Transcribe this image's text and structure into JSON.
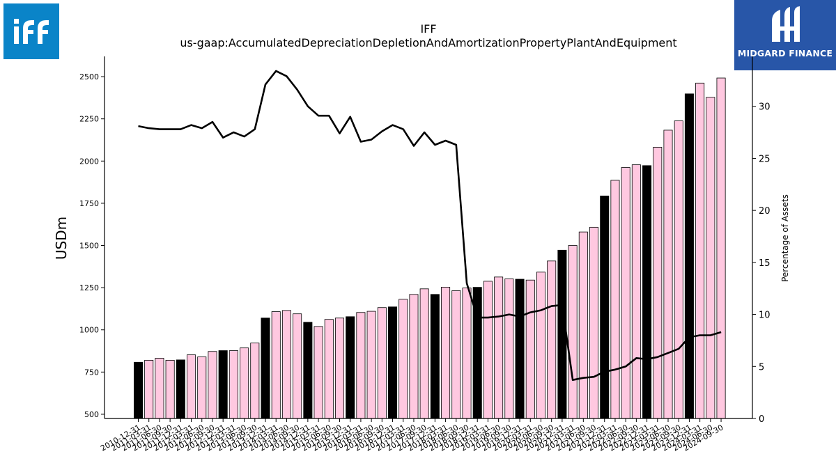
{
  "branding": {
    "left_logo_text": "iff",
    "right_logo_text": "MIDGARD FINANCE",
    "left_logo_color": "#0a84c8",
    "right_logo_color": "#2856a8"
  },
  "chart_data": {
    "type": "bar",
    "title": "IFF",
    "subtitle": "us-gaap:AccumulatedDepreciationDepletionAndAmortizationPropertyPlantAndEquipment",
    "ylabel": "USDm",
    "ylabel_right": "Percentage of Assets",
    "ylim": [
      475,
      2620
    ],
    "yticks": [
      500,
      750,
      1000,
      1250,
      1500,
      1750,
      2000,
      2250,
      2500
    ],
    "ylim_right": [
      0,
      34.8
    ],
    "yticks_right": [
      0,
      5,
      10,
      15,
      20,
      25,
      30
    ],
    "grid": false,
    "categories": [
      "2010-12-31",
      "2011-03-31",
      "2011-06-30",
      "2011-09-30",
      "2011-12-31",
      "2012-03-31",
      "2012-06-30",
      "2012-09-30",
      "2012-12-31",
      "2013-03-31",
      "2013-06-30",
      "2013-09-30",
      "2013-12-31",
      "2014-03-31",
      "2014-06-30",
      "2014-09-30",
      "2014-12-31",
      "2015-03-31",
      "2015-06-30",
      "2015-09-30",
      "2015-12-31",
      "2016-03-31",
      "2016-06-30",
      "2016-09-30",
      "2016-12-31",
      "2017-03-31",
      "2017-06-30",
      "2017-09-30",
      "2017-12-31",
      "2018-03-31",
      "2018-06-30",
      "2018-09-30",
      "2018-12-31",
      "2019-03-31",
      "2019-06-30",
      "2019-09-30",
      "2019-12-31",
      "2020-03-31",
      "2020-06-30",
      "2020-09-30",
      "2020-12-31",
      "2021-03-31",
      "2021-06-30",
      "2021-09-30",
      "2021-12-31",
      "2022-03-31",
      "2022-06-30",
      "2022-09-30",
      "2022-12-31",
      "2023-03-31",
      "2023-06-30",
      "2023-09-30",
      "2023-12-31",
      "2024-03-31",
      "2024-06-30",
      "2024-09-30"
    ],
    "series": [
      {
        "kind": "bar",
        "values": [
          808,
          820,
          832,
          820,
          822,
          852,
          840,
          872,
          877,
          877,
          893,
          922,
          1070,
          1108,
          1115,
          1095,
          1045,
          1020,
          1062,
          1070,
          1078,
          1103,
          1110,
          1132,
          1136,
          1181,
          1210,
          1243,
          1210,
          1253,
          1232,
          1248,
          1252,
          1288,
          1313,
          1302,
          1300,
          1295,
          1342,
          1408,
          1472,
          1500,
          1580,
          1608,
          1793,
          1886,
          1962,
          1978,
          1973,
          2082,
          2183,
          2238,
          2398,
          2462,
          2378,
          2492
        ],
        "colors": [
          "#000000",
          "#ffc8e0",
          "#ffc8e0",
          "#ffc8e0",
          "#000000",
          "#ffc8e0",
          "#ffc8e0",
          "#ffc8e0",
          "#000000",
          "#ffc8e0",
          "#ffc8e0",
          "#ffc8e0",
          "#000000",
          "#ffc8e0",
          "#ffc8e0",
          "#ffc8e0",
          "#000000",
          "#ffc8e0",
          "#ffc8e0",
          "#ffc8e0",
          "#000000",
          "#ffc8e0",
          "#ffc8e0",
          "#ffc8e0",
          "#000000",
          "#ffc8e0",
          "#ffc8e0",
          "#ffc8e0",
          "#000000",
          "#ffc8e0",
          "#ffc8e0",
          "#ffc8e0",
          "#000000",
          "#ffc8e0",
          "#ffc8e0",
          "#ffc8e0",
          "#000000",
          "#ffc8e0",
          "#ffc8e0",
          "#ffc8e0",
          "#000000",
          "#ffc8e0",
          "#ffc8e0",
          "#ffc8e0",
          "#000000",
          "#ffc8e0",
          "#ffc8e0",
          "#ffc8e0",
          "#000000",
          "#ffc8e0",
          "#ffc8e0",
          "#ffc8e0",
          "#000000",
          "#ffc8e0",
          "#ffc8e0",
          "#ffc8e0"
        ]
      },
      {
        "kind": "line",
        "axis": "right",
        "color": "#000000",
        "values": [
          28.1,
          27.9,
          27.8,
          27.8,
          27.8,
          28.2,
          27.9,
          28.5,
          27.0,
          27.5,
          27.1,
          27.8,
          32.1,
          33.4,
          32.9,
          31.6,
          30.0,
          29.1,
          29.1,
          27.4,
          29.0,
          26.6,
          26.8,
          27.6,
          28.2,
          27.8,
          26.2,
          27.5,
          26.3,
          26.7,
          26.3,
          13.0,
          9.7,
          9.7,
          9.8,
          10.0,
          9.8,
          10.2,
          10.4,
          10.8,
          10.9,
          3.7,
          3.9,
          4.0,
          4.5,
          4.7,
          5.0,
          5.8,
          5.7,
          5.9,
          6.3,
          6.7,
          7.8,
          8.0,
          8.0,
          8.3
        ]
      }
    ]
  }
}
